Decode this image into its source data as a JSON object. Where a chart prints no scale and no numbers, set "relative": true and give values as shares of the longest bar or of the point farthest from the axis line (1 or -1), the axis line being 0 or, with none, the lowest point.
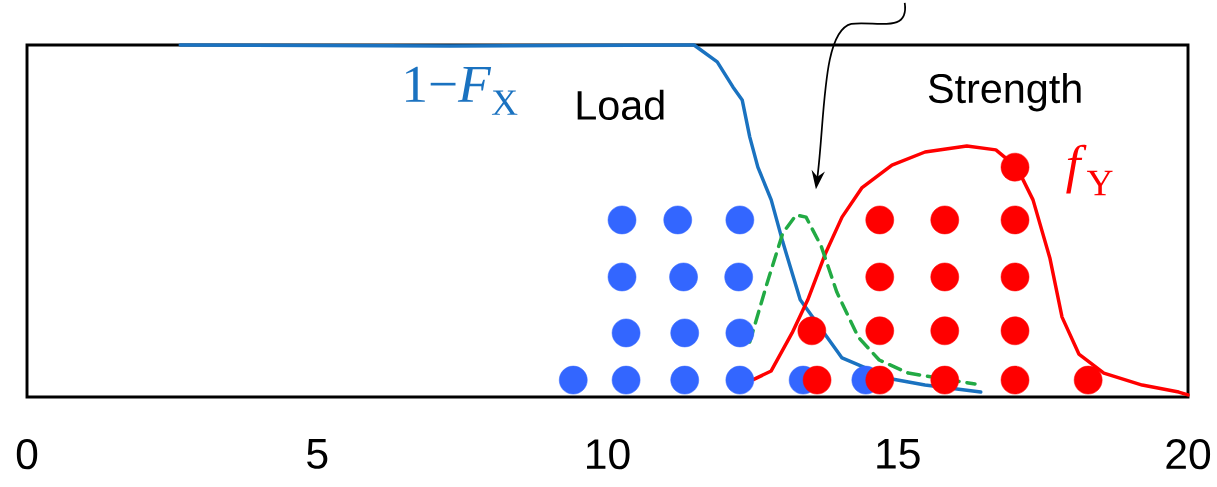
{
  "chart_data": {
    "type": "line",
    "relative": true,
    "xlim": [
      0,
      20
    ],
    "xticks": [
      0,
      5,
      10,
      15,
      20
    ],
    "annotations": [
      "Load",
      "Strength"
    ],
    "series": [
      {
        "type": "scatter",
        "color": "#3366ff",
        "x": [
          9.41,
          10.32,
          11.33,
          12.28,
          13.37,
          14.45,
          10.32,
          11.33,
          12.28,
          10.25,
          11.31,
          12.26,
          10.25,
          11.21,
          12.28
        ],
        "values": [
          0.048,
          0.048,
          0.048,
          0.048,
          0.048,
          0.048,
          0.182,
          0.182,
          0.182,
          0.341,
          0.341,
          0.341,
          0.503,
          0.503,
          0.503
        ]
      },
      {
        "type": "scatter",
        "color": "#ff0000",
        "x": [
          13.61,
          14.69,
          15.81,
          17.02,
          18.28,
          13.52,
          14.69,
          15.81,
          17.02,
          14.69,
          15.81,
          17.02,
          14.69,
          15.81,
          17.02,
          17.02
        ],
        "values": [
          0.048,
          0.048,
          0.048,
          0.048,
          0.048,
          0.188,
          0.188,
          0.188,
          0.188,
          0.341,
          0.341,
          0.341,
          0.503,
          0.503,
          0.503,
          0.653
        ]
      },
      {
        "name": "1−*F*$_{X}$",
        "line_style": "solid",
        "marker": "none",
        "color": "#1a72c0",
        "x": [
          2.64,
          7.29,
          11.42,
          11.49,
          11.89,
          12.16,
          12.32,
          12.45,
          12.59,
          12.82,
          13.02,
          13.32,
          14.04,
          14.9,
          15.47,
          16.43
        ],
        "values": [
          1.0,
          0.997,
          1.0,
          1.0,
          0.952,
          0.881,
          0.844,
          0.739,
          0.653,
          0.56,
          0.44,
          0.276,
          0.111,
          0.051,
          0.034,
          0.014
        ]
      },
      {
        "name": "*f*$_{Y}$",
        "line_style": "solid",
        "marker": "none",
        "color": "#ff0000",
        "x": [
          12.52,
          12.82,
          13.18,
          13.45,
          13.75,
          14.04,
          14.38,
          14.9,
          15.47,
          16.19,
          16.69,
          17.05,
          17.33,
          17.62,
          17.83,
          18.12,
          18.55,
          19.21,
          19.84,
          20.0
        ],
        "values": [
          0.05,
          0.074,
          0.182,
          0.276,
          0.406,
          0.511,
          0.594,
          0.659,
          0.696,
          0.713,
          0.702,
          0.653,
          0.56,
          0.395,
          0.227,
          0.122,
          0.068,
          0.034,
          0.014,
          0.006
        ]
      },
      {
        "line_style": "dashed",
        "marker": "none",
        "color": "#22aa44",
        "x": [
          12.45,
          12.75,
          13.02,
          13.25,
          13.42,
          13.68,
          13.95,
          14.32,
          14.68,
          15.18,
          15.83,
          16.33
        ],
        "values": [
          0.156,
          0.324,
          0.466,
          0.517,
          0.511,
          0.429,
          0.298,
          0.17,
          0.105,
          0.068,
          null,
          0.037
        ]
      }
    ]
  }
}
